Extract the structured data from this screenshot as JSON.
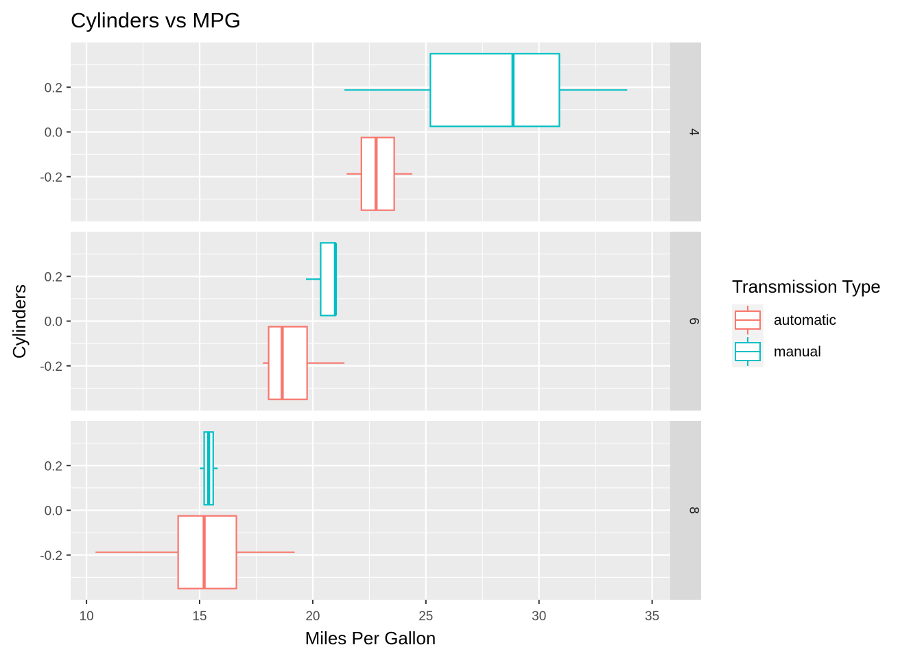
{
  "chart_data": {
    "type": "boxplot",
    "title": "Cylinders vs MPG",
    "xlabel": "Miles Per Gallon",
    "ylabel": "Cylinders",
    "xlim": [
      9.3,
      35.8
    ],
    "x_ticks": [
      10,
      15,
      20,
      25,
      30,
      35
    ],
    "ylim": [
      -0.4,
      0.4
    ],
    "y_ticks": [
      -0.2,
      0.0,
      0.2
    ],
    "y_tick_labels": [
      "-0.2",
      "0.0",
      "0.2"
    ],
    "facet_by": "cylinders",
    "facets": [
      "4",
      "6",
      "8"
    ],
    "grid": true,
    "legend": {
      "title": "Transmission Type",
      "position": "right",
      "entries": [
        {
          "label": "automatic",
          "color": "#F8766D"
        },
        {
          "label": "manual",
          "color": "#00BFC4"
        }
      ]
    },
    "panels": [
      {
        "facet": "4",
        "boxes": [
          {
            "group": "automatic",
            "y_center": -0.1875,
            "min": 21.5,
            "q1": 22.15,
            "median": 22.8,
            "q3": 23.6,
            "max": 24.4
          },
          {
            "group": "manual",
            "y_center": 0.1875,
            "min": 21.4,
            "q1": 25.2,
            "median": 28.85,
            "q3": 30.9,
            "max": 33.9
          }
        ]
      },
      {
        "facet": "6",
        "boxes": [
          {
            "group": "automatic",
            "y_center": -0.1875,
            "min": 17.8,
            "q1": 18.05,
            "median": 18.65,
            "q3": 19.75,
            "max": 21.4
          },
          {
            "group": "manual",
            "y_center": 0.1875,
            "min": 19.7,
            "q1": 20.35,
            "median": 21.0,
            "q3": 21.0,
            "max": 21.0
          }
        ]
      },
      {
        "facet": "8",
        "boxes": [
          {
            "group": "automatic",
            "y_center": -0.1875,
            "min": 10.4,
            "q1": 14.05,
            "median": 15.2,
            "q3": 16.625,
            "max": 19.2
          },
          {
            "group": "manual",
            "y_center": 0.1875,
            "min": 15.0,
            "q1": 15.2,
            "median": 15.4,
            "q3": 15.6,
            "max": 15.8
          }
        ]
      }
    ]
  },
  "colors": {
    "panel_background": "#EBEBEB",
    "grid": "#FFFFFF",
    "strip_background": "#D9D9D9",
    "legend_key_background": "#F2F2F2",
    "tick_text": "#4D4D4D",
    "automatic": "#F8766D",
    "manual": "#00BFC4"
  }
}
